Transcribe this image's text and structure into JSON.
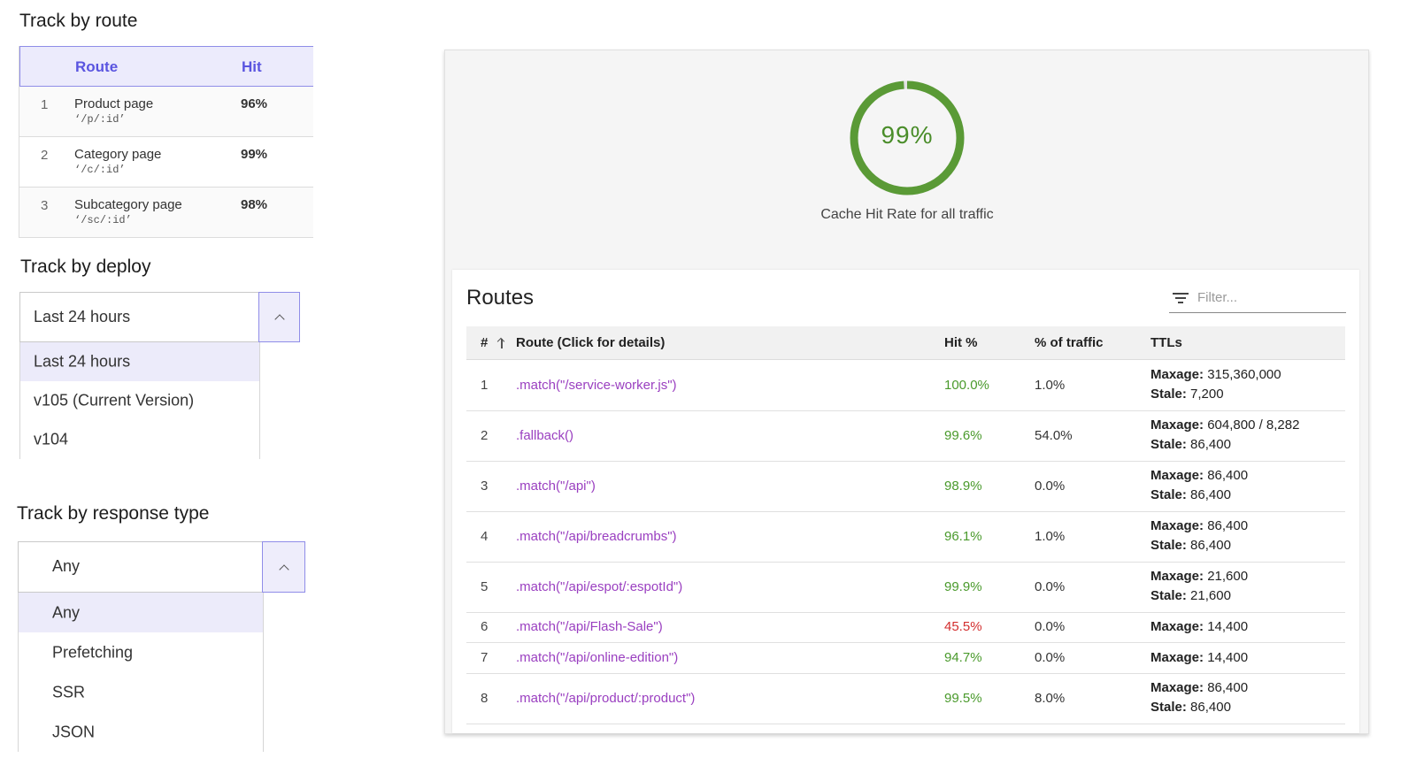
{
  "colors": {
    "accent": "#5a55e0",
    "hit_good": "#4a9a2c",
    "hit_bad": "#d32f2f",
    "route_link": "#9a3fc0",
    "gauge": "#5a9a36"
  },
  "track_by_route": {
    "title": "Track by route",
    "columns": {
      "route": "Route",
      "hit": "Hit"
    },
    "rows": [
      {
        "num": "1",
        "name": "Product page",
        "path": "‘/p/:id’",
        "hit": "96%"
      },
      {
        "num": "2",
        "name": "Category page",
        "path": "‘/c/:id’",
        "hit": "99%"
      },
      {
        "num": "3",
        "name": "Subcategory page",
        "path": "‘/sc/:id’",
        "hit": "98%"
      }
    ]
  },
  "track_by_deploy": {
    "title": "Track by deploy",
    "selected": "Last 24 hours",
    "options": [
      "Last 24 hours",
      "v105 (Current Version)",
      "v104"
    ]
  },
  "track_by_response_type": {
    "title": "Track by response type",
    "selected": "Any",
    "options": [
      "Any",
      "Prefetching",
      "SSR",
      "JSON"
    ]
  },
  "gauge": {
    "value": 0.99,
    "label_value": "99%",
    "label": "Cache Hit Rate for all traffic"
  },
  "routes": {
    "title": "Routes",
    "filter_placeholder": "Filter...",
    "columns": {
      "num": "#",
      "route": "Route (Click for details)",
      "hit": "Hit %",
      "traffic": "% of traffic",
      "ttls": "TTLs"
    },
    "ttl_labels": {
      "maxage": "Maxage:",
      "stale": "Stale:"
    },
    "rows": [
      {
        "num": "1",
        "route": ".match(\"/service-worker.js\")",
        "hit": "100.0%",
        "traffic": "1.0%",
        "maxage": "315,360,000",
        "stale": "7,200",
        "bad": false
      },
      {
        "num": "2",
        "route": ".fallback()",
        "hit": "99.6%",
        "traffic": "54.0%",
        "maxage": "604,800 / 8,282",
        "stale": "86,400",
        "bad": false
      },
      {
        "num": "3",
        "route": ".match(\"/api\")",
        "hit": "98.9%",
        "traffic": "0.0%",
        "maxage": "86,400",
        "stale": "86,400",
        "bad": false
      },
      {
        "num": "4",
        "route": ".match(\"/api/breadcrumbs\")",
        "hit": "96.1%",
        "traffic": "1.0%",
        "maxage": "86,400",
        "stale": "86,400",
        "bad": false
      },
      {
        "num": "5",
        "route": ".match(\"/api/espot/:espotId\")",
        "hit": "99.9%",
        "traffic": "0.0%",
        "maxage": "21,600",
        "stale": "21,600",
        "bad": false
      },
      {
        "num": "6",
        "route": ".match(\"/api/Flash-Sale\")",
        "hit": "45.5%",
        "traffic": "0.0%",
        "maxage": "14,400",
        "stale": "",
        "bad": true
      },
      {
        "num": "7",
        "route": ".match(\"/api/online-edition\")",
        "hit": "94.7%",
        "traffic": "0.0%",
        "maxage": "14,400",
        "stale": "",
        "bad": false
      },
      {
        "num": "8",
        "route": ".match(\"/api/product/:product\")",
        "hit": "99.5%",
        "traffic": "8.0%",
        "maxage": "86,400",
        "stale": "86,400",
        "bad": false
      }
    ]
  }
}
